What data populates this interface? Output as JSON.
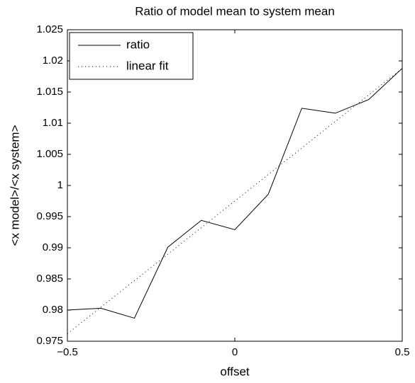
{
  "chart_data": {
    "type": "line",
    "title": "Ratio of model mean to system mean",
    "xlabel": "offset",
    "ylabel": "<x model>/<x system>",
    "series": [
      {
        "name": "ratio",
        "color": "#000000",
        "style": "solid",
        "x": [
          -0.5,
          -0.4,
          -0.3,
          -0.2,
          -0.1,
          0,
          0.1,
          0.2,
          0.3,
          0.4,
          0.5
        ],
        "values": [
          0.98,
          0.9803,
          0.9787,
          0.9901,
          0.9944,
          0.9929,
          0.9986,
          1.0124,
          1.0116,
          1.0138,
          1.0188
        ]
      },
      {
        "name": "linear fit",
        "color": "#000000",
        "style": "dotted",
        "x": [
          -0.5,
          0.5
        ],
        "values": [
          0.9762,
          1.0188
        ]
      }
    ],
    "xlim": [
      -0.5,
      0.5
    ],
    "xticks": [
      {
        "value": -0.5,
        "label": "−0.5"
      },
      0,
      0.5
    ],
    "ylim": [
      0.975,
      1.025
    ],
    "yticks": [
      0.975,
      0.98,
      0.985,
      0.99,
      0.995,
      1,
      1.005,
      1.01,
      1.015,
      1.02,
      1.025
    ],
    "grid": false,
    "legend": "upper left"
  }
}
